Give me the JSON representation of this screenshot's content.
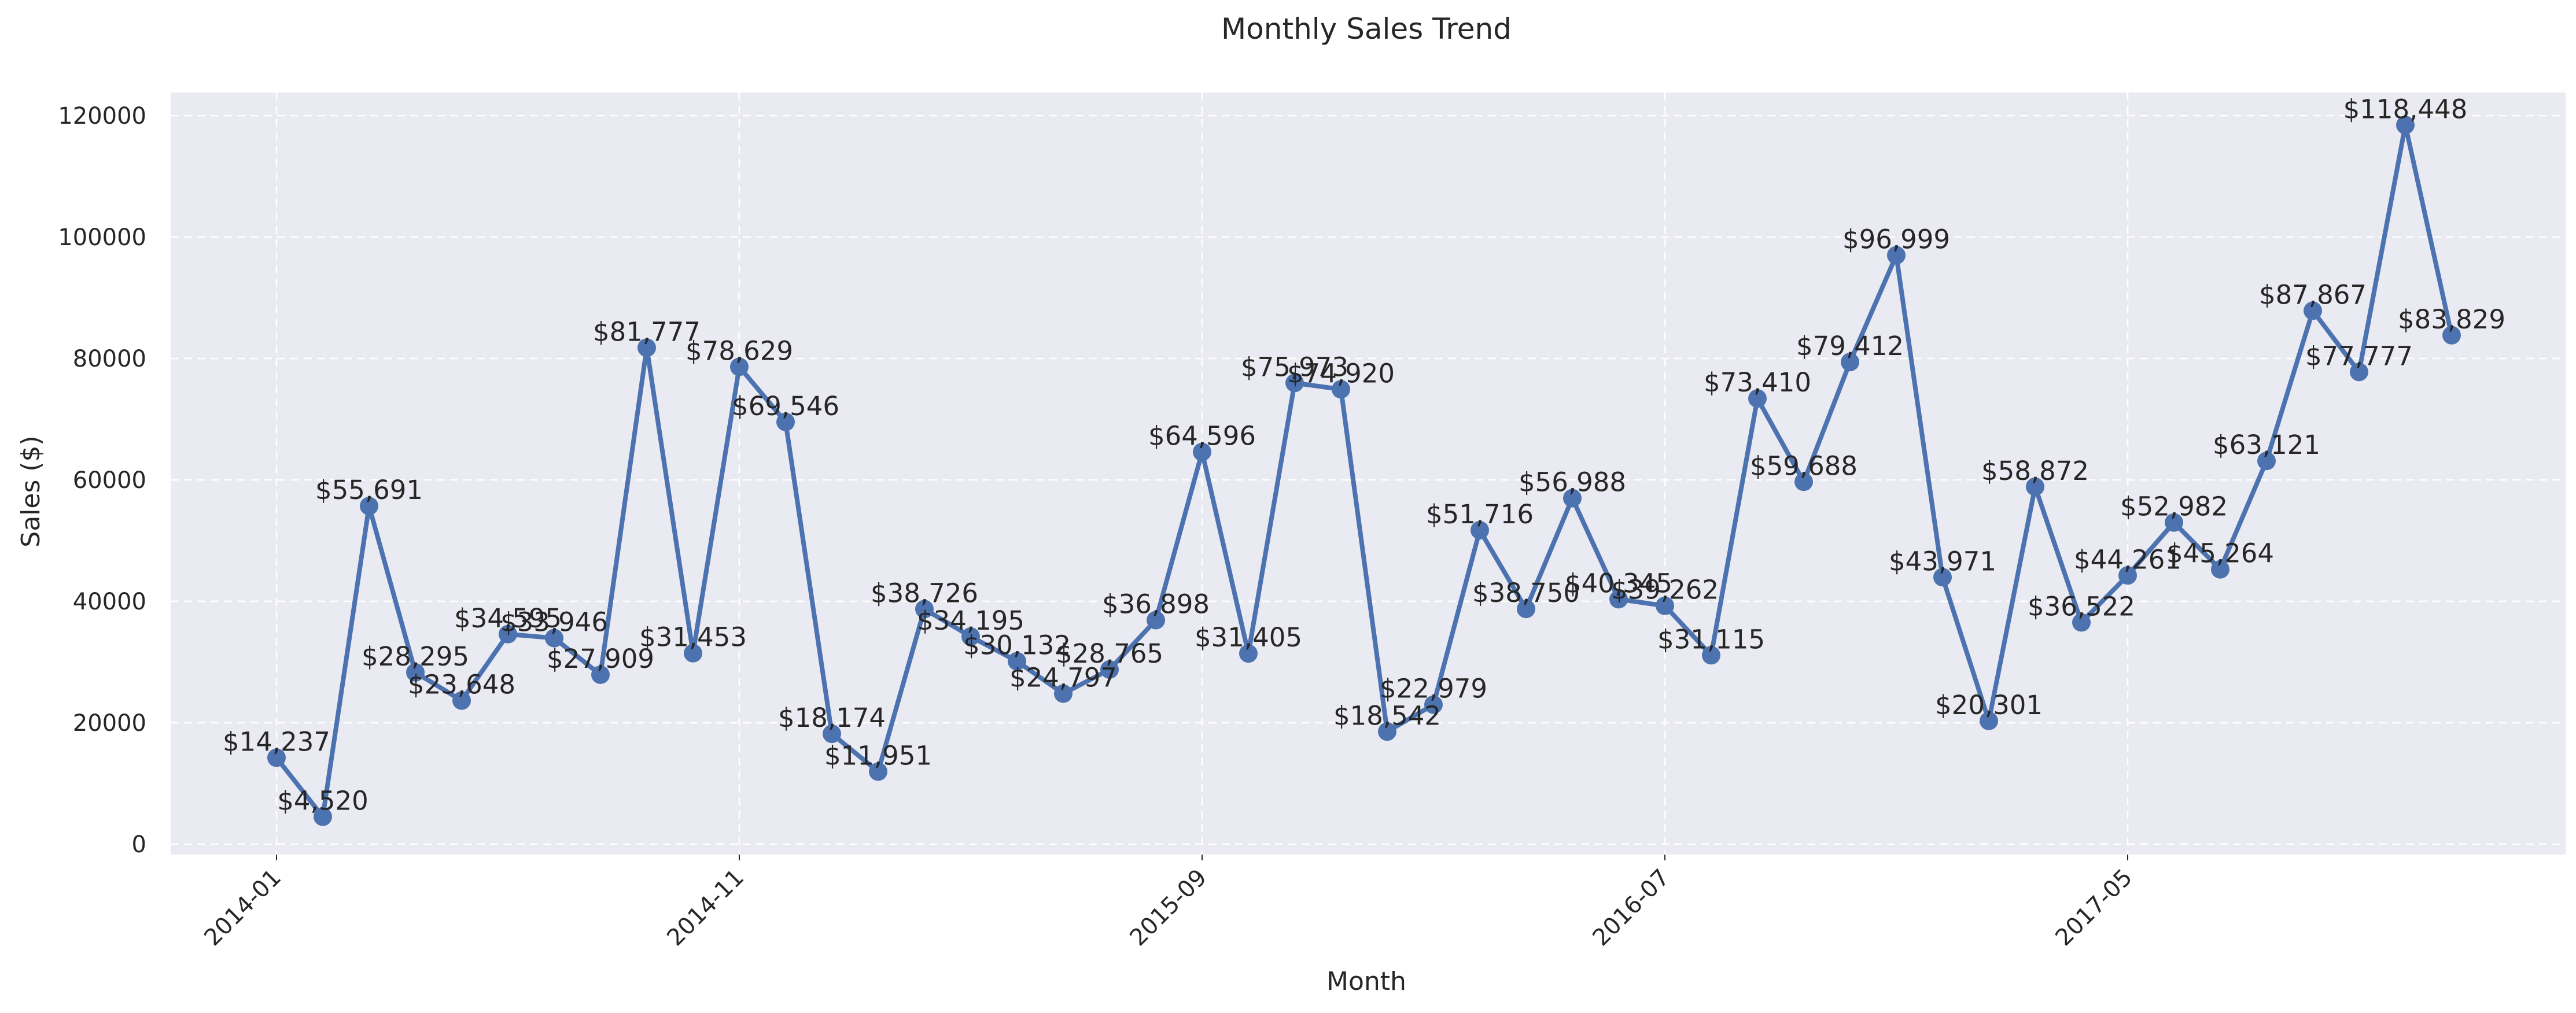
{
  "chart_data": {
    "type": "line",
    "title": "Monthly Sales Trend",
    "xlabel": "Month",
    "ylabel": "Sales ($)",
    "x": [
      "2014-01",
      "2014-02",
      "2014-03",
      "2014-04",
      "2014-05",
      "2014-06",
      "2014-07",
      "2014-08",
      "2014-09",
      "2014-10",
      "2014-11",
      "2014-12",
      "2015-01",
      "2015-02",
      "2015-03",
      "2015-04",
      "2015-05",
      "2015-06",
      "2015-07",
      "2015-08",
      "2015-09",
      "2015-10",
      "2015-11",
      "2015-12",
      "2016-01",
      "2016-02",
      "2016-03",
      "2016-04",
      "2016-05",
      "2016-06",
      "2016-07",
      "2016-08",
      "2016-09",
      "2016-10",
      "2016-11",
      "2016-12",
      "2017-01",
      "2017-02",
      "2017-03",
      "2017-04",
      "2017-05",
      "2017-06",
      "2017-07",
      "2017-08",
      "2017-09",
      "2017-10",
      "2017-11",
      "2017-12"
    ],
    "series": [
      {
        "values": [
          14237,
          4520,
          55691,
          28295,
          23648,
          34595,
          33946,
          27909,
          81777,
          31453,
          78629,
          69546,
          18174,
          11951,
          38726,
          34195,
          30132,
          24797,
          28765,
          36898,
          64596,
          31405,
          75973,
          74920,
          18542,
          22979,
          51716,
          38750,
          56988,
          40345,
          39262,
          31115,
          73410,
          59688,
          79412,
          96999,
          43971,
          20301,
          58872,
          36522,
          44261,
          52982,
          45264,
          63121,
          87867,
          77777,
          118448,
          83829
        ],
        "labels": [
          "$14,237",
          "$4,520",
          "$55,691",
          "$28,295",
          "$23,648",
          "$34,595",
          "$33,946",
          "$27,909",
          "$81,777",
          "$31,453",
          "$78,629",
          "$69,546",
          "$18,174",
          "$11,951",
          "$38,726",
          "$34,195",
          "$30,132",
          "$24,797",
          "$28,765",
          "$36,898",
          "$64,596",
          "$31,405",
          "$75,973",
          "$74,920",
          "$18,542",
          "$22,979",
          "$51,716",
          "$38,750",
          "$56,988",
          "$40,345",
          "$39,262",
          "$31,115",
          "$73,410",
          "$59,688",
          "$79,412",
          "$96,999",
          "$43,971",
          "$20,301",
          "$58,872",
          "$36,522",
          "$44,261",
          "$52,982",
          "$45,264",
          "$63,121",
          "$87,867",
          "$77,777",
          "$118,448",
          "$83,829"
        ]
      }
    ],
    "xticks": [
      "2014-01",
      "2014-11",
      "2015-09",
      "2016-07",
      "2017-05"
    ],
    "yticks": [
      0,
      20000,
      40000,
      60000,
      80000,
      100000,
      120000
    ],
    "ylim": [
      0,
      124000
    ],
    "grid": true,
    "colors": {
      "line": "#4c72b0",
      "background": "#eaeaf2",
      "grid": "#ffffff"
    }
  }
}
